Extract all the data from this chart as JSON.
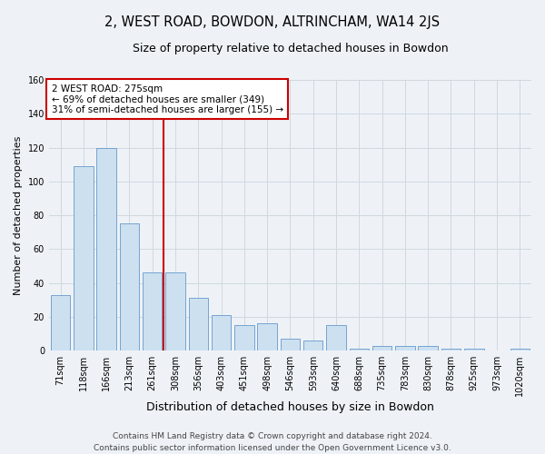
{
  "title": "2, WEST ROAD, BOWDON, ALTRINCHAM, WA14 2JS",
  "subtitle": "Size of property relative to detached houses in Bowdon",
  "xlabel": "Distribution of detached houses by size in Bowdon",
  "ylabel": "Number of detached properties",
  "footer_line1": "Contains HM Land Registry data © Crown copyright and database right 2024.",
  "footer_line2": "Contains public sector information licensed under the Open Government Licence v3.0.",
  "categories": [
    "71sqm",
    "118sqm",
    "166sqm",
    "213sqm",
    "261sqm",
    "308sqm",
    "356sqm",
    "403sqm",
    "451sqm",
    "498sqm",
    "546sqm",
    "593sqm",
    "640sqm",
    "688sqm",
    "735sqm",
    "783sqm",
    "830sqm",
    "878sqm",
    "925sqm",
    "973sqm",
    "1020sqm"
  ],
  "values": [
    33,
    109,
    120,
    75,
    46,
    46,
    31,
    21,
    15,
    16,
    7,
    6,
    15,
    1,
    3,
    3,
    3,
    1,
    1,
    0,
    1
  ],
  "bar_color": "#cce0f0",
  "bar_edge_color": "#6699cc",
  "grid_color": "#d0d8e0",
  "background_color": "#eef2f7",
  "vline_color": "#cc0000",
  "vline_x": 4.5,
  "annotation_text": "2 WEST ROAD: 275sqm\n← 69% of detached houses are smaller (349)\n31% of semi-detached houses are larger (155) →",
  "annotation_box_color": "#ffffff",
  "annotation_box_edge": "#cc0000",
  "ylim": [
    0,
    160
  ],
  "yticks": [
    0,
    20,
    40,
    60,
    80,
    100,
    120,
    140,
    160
  ],
  "title_fontsize": 10.5,
  "subtitle_fontsize": 9,
  "ylabel_fontsize": 8,
  "xlabel_fontsize": 9,
  "tick_fontsize": 7,
  "annot_fontsize": 7.5,
  "footer_fontsize": 6.5
}
